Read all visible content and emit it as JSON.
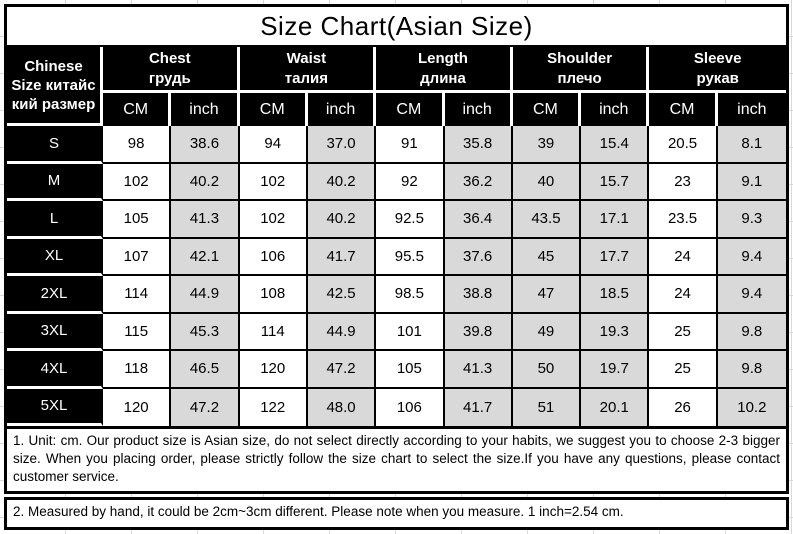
{
  "title": "Size Chart(Asian Size)",
  "table": {
    "corner_header_lines": [
      "Chinese",
      "Size китайс",
      "кий размер"
    ],
    "unit_cm": "CM",
    "unit_inch": "inch",
    "groups": [
      {
        "key": "chest",
        "en": "Chest",
        "ru": "грудь"
      },
      {
        "key": "waist",
        "en": "Waist",
        "ru": "талия"
      },
      {
        "key": "length",
        "en": "Length",
        "ru": "длина"
      },
      {
        "key": "shoulder",
        "en": "Shoulder",
        "ru": "плечо"
      },
      {
        "key": "sleeve",
        "en": "Sleeve",
        "ru": "рукав"
      }
    ],
    "rows": [
      {
        "size": "S",
        "values": [
          "98",
          "38.6",
          "94",
          "37.0",
          "91",
          "35.8",
          "39",
          "15.4",
          "20.5",
          "8.1"
        ]
      },
      {
        "size": "M",
        "values": [
          "102",
          "40.2",
          "102",
          "40.2",
          "92",
          "36.2",
          "40",
          "15.7",
          "23",
          "9.1"
        ]
      },
      {
        "size": "L",
        "values": [
          "105",
          "41.3",
          "102",
          "40.2",
          "92.5",
          "36.4",
          "43.5",
          "17.1",
          "23.5",
          "9.3"
        ]
      },
      {
        "size": "XL",
        "values": [
          "107",
          "42.1",
          "106",
          "41.7",
          "95.5",
          "37.6",
          "45",
          "17.7",
          "24",
          "9.4"
        ]
      },
      {
        "size": "2XL",
        "values": [
          "114",
          "44.9",
          "108",
          "42.5",
          "98.5",
          "38.8",
          "47",
          "18.5",
          "24",
          "9.4"
        ]
      },
      {
        "size": "3XL",
        "values": [
          "115",
          "45.3",
          "114",
          "44.9",
          "101",
          "39.8",
          "49",
          "19.3",
          "25",
          "9.8"
        ]
      },
      {
        "size": "4XL",
        "values": [
          "118",
          "46.5",
          "120",
          "47.2",
          "105",
          "41.3",
          "50",
          "19.7",
          "25",
          "9.8"
        ]
      },
      {
        "size": "5XL",
        "values": [
          "120",
          "47.2",
          "122",
          "48.0",
          "106",
          "41.7",
          "51",
          "20.1",
          "26",
          "10.2"
        ]
      }
    ]
  },
  "notes": [
    "1. Unit: cm. Our product size is Asian size, do not select directly according to your habits, we suggest you to choose 2-3 bigger size. When you placing order, please strictly follow the size chart to select the size.If you have any questions, please contact customer service.",
    "2. Measured by hand, it could be 2cm~3cm different. Please note when you measure. 1 inch=2.54 cm."
  ],
  "colors": {
    "header_bg": "#000000",
    "header_text": "#ffffff",
    "cell_bg": "#ffffff",
    "shaded_cell_bg": "#d9d9d9",
    "border": "#000000",
    "gridline": "#d9d9d9"
  }
}
